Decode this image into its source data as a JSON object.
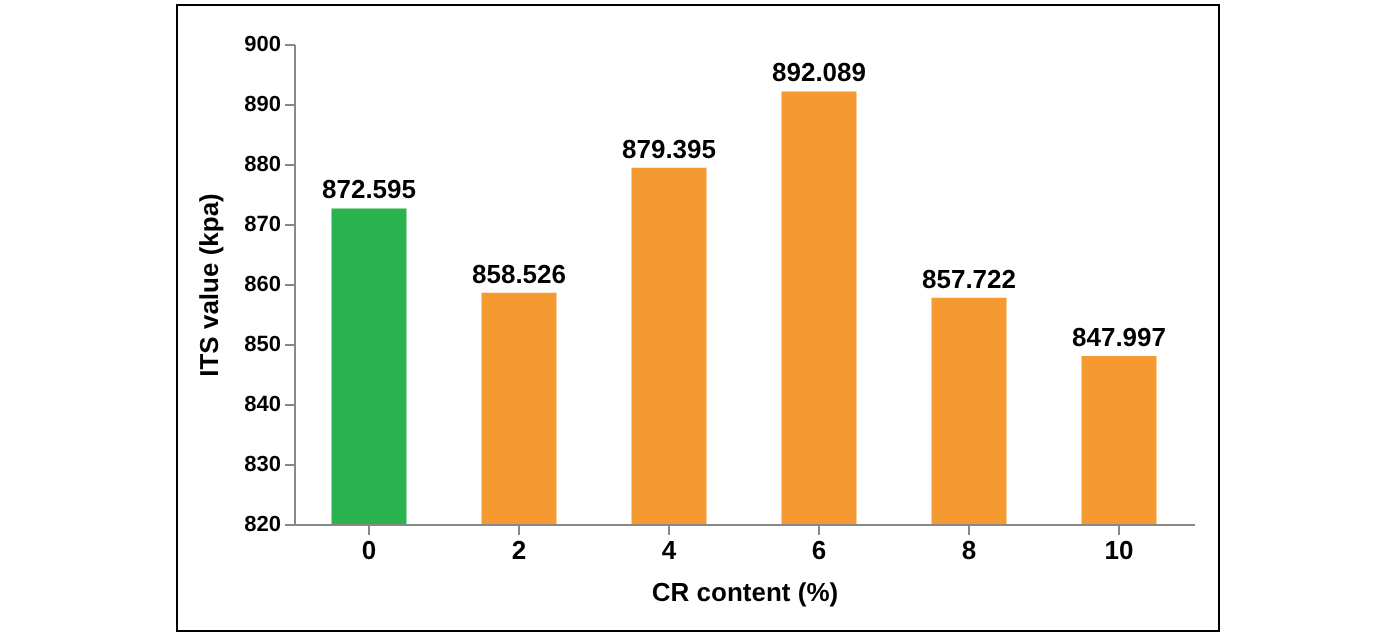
{
  "chart_data": {
    "type": "bar",
    "xlabel": "CR content  (%)",
    "ylabel": "ITS value (kpa)",
    "categories": [
      "0",
      "2",
      "4",
      "6",
      "8",
      "10"
    ],
    "values": [
      872.595,
      858.526,
      879.395,
      892.089,
      857.722,
      847.997
    ],
    "colors": [
      "#2bb34f",
      "#f59a30",
      "#f59a30",
      "#f59a30",
      "#f59a30",
      "#f59a30"
    ],
    "ylim": [
      820,
      900
    ],
    "yticks": [
      820,
      830,
      840,
      850,
      860,
      870,
      880,
      890,
      900
    ],
    "data_labels": true,
    "grid": false
  }
}
